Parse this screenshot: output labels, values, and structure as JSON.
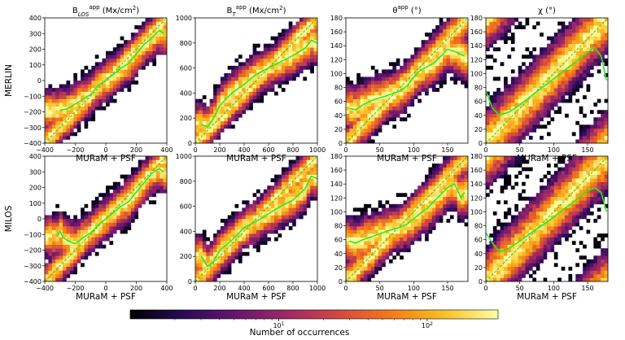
{
  "chart_data": {
    "type": "heatmap",
    "row_labels": [
      "MERLIN",
      "MILOS"
    ],
    "xlabel": "MURaM + PSF",
    "panels": [
      {
        "key": "blos",
        "title_main": "B",
        "title_sup": "app",
        "title_sub": "LOS",
        "title_unit": "(Mx/cm",
        "title_unit_sup": "2",
        "title_unit_end": ")",
        "xlim": [
          -400,
          400
        ],
        "ylim": [
          -400,
          400
        ],
        "xticks": [
          -400,
          -200,
          0,
          200,
          400
        ],
        "yticks": [
          -400,
          -300,
          -200,
          -100,
          0,
          100,
          200,
          300,
          400
        ],
        "mean_curve": {
          "MERLIN": {
            "x": [
              -300,
              -250,
              -200,
              -150,
              -100,
              -50,
              0,
              50,
              100,
              150,
              200,
              250,
              300,
              350,
              380
            ],
            "y": [
              -190,
              -180,
              -150,
              -120,
              -90,
              -30,
              0,
              40,
              80,
              110,
              170,
              230,
              270,
              320,
              300
            ]
          },
          "MILOS": {
            "x": [
              -320,
              -300,
              -280,
              -250,
              -200,
              -150,
              -100,
              -50,
              0,
              50,
              100,
              150,
              200,
              250,
              300,
              350,
              380
            ],
            "y": [
              -110,
              -80,
              -120,
              -140,
              -160,
              -120,
              -90,
              -40,
              0,
              40,
              80,
              110,
              170,
              230,
              290,
              320,
              300
            ]
          }
        }
      },
      {
        "key": "bt",
        "title_main": "B",
        "title_sup": "app",
        "title_sub": "T",
        "title_unit": "(Mx/cm",
        "title_unit_sup": "2",
        "title_unit_end": ")",
        "xlim": [
          0,
          1000
        ],
        "ylim": [
          0,
          1000
        ],
        "xticks": [
          0,
          200,
          400,
          600,
          800,
          1000
        ],
        "yticks": [
          0,
          200,
          400,
          600,
          800,
          1000
        ],
        "mean_curve": {
          "MERLIN": {
            "x": [
              50,
              100,
              150,
              200,
              300,
              400,
              500,
              600,
              700,
              800,
              900,
              950,
              1000
            ],
            "y": [
              150,
              130,
              200,
              300,
              400,
              470,
              550,
              600,
              650,
              700,
              760,
              820,
              800
            ]
          },
          "MILOS": {
            "x": [
              50,
              100,
              150,
              200,
              300,
              400,
              500,
              600,
              700,
              800,
              900,
              950,
              1000
            ],
            "y": [
              200,
              120,
              160,
              250,
              330,
              430,
              480,
              540,
              600,
              650,
              740,
              840,
              820
            ]
          }
        }
      },
      {
        "key": "theta",
        "title_main": "θ",
        "title_sup": "app",
        "title_sub": "",
        "title_unit": "(°)",
        "title_unit_sup": "",
        "title_unit_end": "",
        "xlim": [
          0,
          180
        ],
        "ylim": [
          0,
          180
        ],
        "xticks": [
          0,
          50,
          100,
          150
        ],
        "yticks": [
          0,
          20,
          40,
          60,
          80,
          100,
          120,
          140,
          160,
          180
        ],
        "mean_curve": {
          "MERLIN": {
            "x": [
              5,
              15,
              25,
              40,
              60,
              80,
              90,
              100,
              110,
              120,
              130,
              140,
              150,
              160,
              175
            ],
            "y": [
              50,
              48,
              55,
              62,
              68,
              75,
              82,
              95,
              105,
              110,
              115,
              125,
              135,
              132,
              125
            ]
          },
          "MILOS": {
            "x": [
              5,
              15,
              25,
              40,
              60,
              80,
              90,
              100,
              110,
              120,
              130,
              140,
              150,
              160,
              170,
              175
            ],
            "y": [
              58,
              55,
              60,
              65,
              72,
              78,
              82,
              90,
              98,
              105,
              115,
              125,
              135,
              140,
              120,
              128
            ]
          }
        }
      },
      {
        "key": "chi",
        "title_main": "χ",
        "title_sup": "",
        "title_sub": "",
        "title_unit": "(°)",
        "title_unit_sup": "",
        "title_unit_end": "",
        "xlim": [
          0,
          180
        ],
        "ylim": [
          0,
          180
        ],
        "xticks": [
          0,
          50,
          100,
          150
        ],
        "yticks": [
          0,
          20,
          40,
          60,
          80,
          100,
          120,
          140,
          160,
          180
        ],
        "mean_curve": {
          "MERLIN": {
            "x": [
              0,
              10,
              20,
              35,
              50,
              70,
              90,
              110,
              130,
              150,
              160,
              170,
              178
            ],
            "y": [
              75,
              50,
              40,
              45,
              55,
              70,
              85,
              100,
              115,
              130,
              138,
              125,
              90
            ]
          },
          "MILOS": {
            "x": [
              0,
              10,
              20,
              35,
              50,
              70,
              90,
              110,
              130,
              150,
              160,
              170,
              178
            ],
            "y": [
              70,
              55,
              42,
              48,
              58,
              72,
              85,
              100,
              115,
              130,
              135,
              128,
              100
            ]
          }
        }
      }
    ],
    "colorbar": {
      "label": "Number of occurrences",
      "scale": "log",
      "range": [
        1,
        300
      ],
      "ticks": [
        {
          "base": "10",
          "exp": "1",
          "value": 10
        },
        {
          "base": "10",
          "exp": "2",
          "value": 100
        }
      ]
    },
    "colors": {
      "one_to_one_line": "#22bb22",
      "mean_curve": "#22ee22",
      "cmap": [
        "#000004",
        "#280b54",
        "#65156e",
        "#9f2a63",
        "#d44842",
        "#f57d15",
        "#fac228",
        "#fcffa4"
      ]
    }
  }
}
